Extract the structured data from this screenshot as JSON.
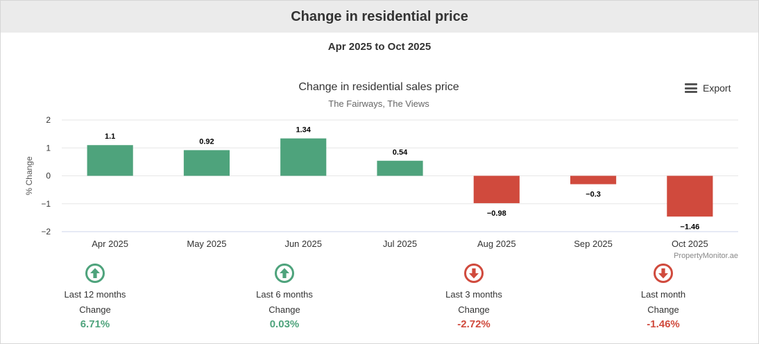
{
  "header": {
    "title": "Change in residential price"
  },
  "range_label": "Apr 2025 to Oct 2025",
  "export": {
    "label": "Export"
  },
  "credit": "PropertyMonitor.ae",
  "colors": {
    "positive": "#4ea37c",
    "negative": "#d04a3d"
  },
  "chart_data": {
    "type": "bar",
    "title": "Change in residential sales price",
    "subtitle": "The Fairways, The Views",
    "xlabel": "",
    "ylabel": "% Change",
    "categories": [
      "Apr 2025",
      "May 2025",
      "Jun 2025",
      "Jul 2025",
      "Aug 2025",
      "Sep 2025",
      "Oct 2025"
    ],
    "values": [
      1.1,
      0.92,
      1.34,
      0.54,
      -0.98,
      -0.3,
      -1.46
    ],
    "data_labels": [
      "1.1",
      "0.92",
      "1.34",
      "0.54",
      "−0.98",
      "−0.3",
      "−1.46"
    ],
    "ylim": [
      -2,
      2
    ],
    "yticks": [
      2,
      1,
      0,
      -1,
      -2
    ],
    "ytick_labels": [
      "2",
      "1",
      "0",
      "−1",
      "−2"
    ],
    "grid": true
  },
  "stats": [
    {
      "period": "Last 12 months",
      "label": "Change",
      "value": "6.71%",
      "direction": "up",
      "icon": "arrow-up-circle-icon"
    },
    {
      "period": "Last 6 months",
      "label": "Change",
      "value": "0.03%",
      "direction": "up",
      "icon": "arrow-up-circle-icon"
    },
    {
      "period": "Last 3 months",
      "label": "Change",
      "value": "-2.72%",
      "direction": "down",
      "icon": "arrow-down-circle-icon"
    },
    {
      "period": "Last month",
      "label": "Change",
      "value": "-1.46%",
      "direction": "down",
      "icon": "arrow-down-circle-icon"
    }
  ]
}
